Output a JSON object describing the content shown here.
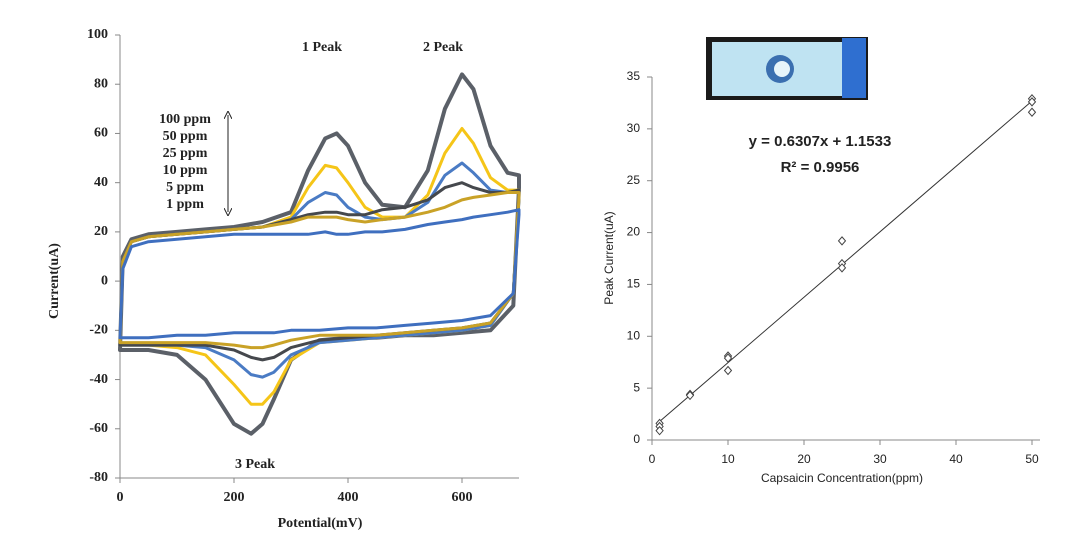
{
  "chart_data": [
    {
      "type": "line",
      "xlabel": "Potential(mV)",
      "ylabel": "Current(uA)",
      "annotations": [
        "1 Peak",
        "2 Peak",
        "3 Peak"
      ],
      "xlim": [
        0,
        700
      ],
      "ylim": [
        -80,
        100
      ],
      "xticks": [
        0,
        200,
        400,
        600
      ],
      "yticks": [
        100,
        80,
        60,
        40,
        20,
        0,
        -20,
        -40,
        -60,
        -80
      ],
      "x": [
        0,
        5,
        20,
        50,
        100,
        150,
        200,
        250,
        300,
        330,
        360,
        380,
        400,
        430,
        460,
        500,
        540,
        570,
        600,
        620,
        650,
        680,
        700,
        700,
        690,
        650,
        600,
        550,
        500,
        450,
        400,
        350,
        300,
        270,
        250,
        230,
        200,
        150,
        100,
        50,
        10,
        5,
        0
      ],
      "series": [
        {
          "name": "100 ppm",
          "color": "#5b6068",
          "values": [
            -28,
            10,
            17,
            19,
            20,
            21,
            22,
            24,
            28,
            45,
            58,
            60,
            55,
            40,
            31,
            30,
            45,
            70,
            84,
            78,
            55,
            44,
            43,
            38,
            -10,
            -20,
            -21,
            -22,
            -22,
            -23,
            -23,
            -24,
            -32,
            -48,
            -58,
            -62,
            -58,
            -40,
            -30,
            -28,
            -28,
            -28,
            -28
          ]
        },
        {
          "name": "50 ppm",
          "color": "#f5c518",
          "values": [
            -26,
            8,
            16,
            18,
            19,
            20,
            21,
            22,
            26,
            38,
            47,
            46,
            40,
            30,
            26,
            26,
            35,
            52,
            62,
            56,
            42,
            37,
            37,
            35,
            -5,
            -18,
            -20,
            -21,
            -22,
            -23,
            -24,
            -25,
            -32,
            -45,
            -50,
            -50,
            -42,
            -30,
            -27,
            -26,
            -26,
            -26,
            -26
          ]
        },
        {
          "name": "25 ppm",
          "color": "#4a7bc4",
          "values": [
            -25,
            8,
            16,
            18,
            19,
            20,
            21,
            22,
            25,
            32,
            36,
            35,
            30,
            26,
            25,
            26,
            32,
            43,
            48,
            44,
            37,
            36,
            36,
            34,
            -5,
            -18,
            -20,
            -21,
            -22,
            -23,
            -24,
            -25,
            -30,
            -37,
            -39,
            -38,
            -32,
            -27,
            -26,
            -26,
            -26,
            -26,
            -26
          ]
        },
        {
          "name": "10 ppm",
          "color": "#45484d",
          "values": [
            -26,
            8,
            16,
            18,
            19,
            20,
            21,
            22,
            25,
            27,
            28,
            28,
            27,
            27,
            29,
            30,
            33,
            38,
            40,
            38,
            36,
            36,
            37,
            35,
            -5,
            -17,
            -19,
            -20,
            -21,
            -22,
            -23,
            -24,
            -27,
            -31,
            -32,
            -31,
            -28,
            -26,
            -26,
            -26,
            -26,
            -26,
            -26
          ]
        },
        {
          "name": "5 ppm",
          "color": "#c9a227",
          "values": [
            -25,
            8,
            16,
            18,
            19,
            20,
            21,
            22,
            24,
            26,
            26,
            26,
            25,
            24,
            25,
            26,
            28,
            30,
            33,
            34,
            35,
            36,
            36,
            34,
            -5,
            -17,
            -19,
            -20,
            -21,
            -22,
            -22,
            -22,
            -24,
            -26,
            -27,
            -27,
            -26,
            -25,
            -25,
            -25,
            -25,
            -25,
            -25
          ]
        },
        {
          "name": "1 ppm",
          "color": "#3f6fbf",
          "values": [
            -23,
            5,
            14,
            16,
            17,
            18,
            19,
            19,
            19,
            19,
            20,
            19,
            19,
            20,
            20,
            21,
            23,
            24,
            25,
            26,
            27,
            28,
            29,
            27,
            -5,
            -14,
            -16,
            -17,
            -18,
            -19,
            -19,
            -20,
            -20,
            -21,
            -21,
            -21,
            -21,
            -22,
            -22,
            -23,
            -23,
            -23,
            -23
          ]
        }
      ]
    },
    {
      "type": "scatter",
      "xlabel": "Capsaicin Concentration(ppm)",
      "ylabel": "Peak Current(uA)",
      "annotations": [
        "y = 0.6307x + 1.1533",
        "R² = 0.9956"
      ],
      "xlim": [
        0,
        50
      ],
      "ylim": [
        0,
        35
      ],
      "xticks": [
        0,
        10,
        20,
        30,
        40,
        50
      ],
      "yticks": [
        0,
        5,
        10,
        15,
        20,
        25,
        30,
        35
      ],
      "x": [
        1,
        1,
        1,
        5,
        5,
        10,
        10,
        10,
        25,
        25,
        25,
        50,
        50,
        50
      ],
      "values": [
        1.6,
        1.3,
        0.9,
        4.4,
        4.3,
        8.1,
        7.9,
        6.7,
        19.2,
        17.0,
        16.6,
        32.9,
        32.6,
        31.6
      ],
      "color": "#444444",
      "trendline": {
        "x": [
          1,
          50
        ],
        "values": [
          1.78,
          32.69
        ]
      }
    }
  ]
}
